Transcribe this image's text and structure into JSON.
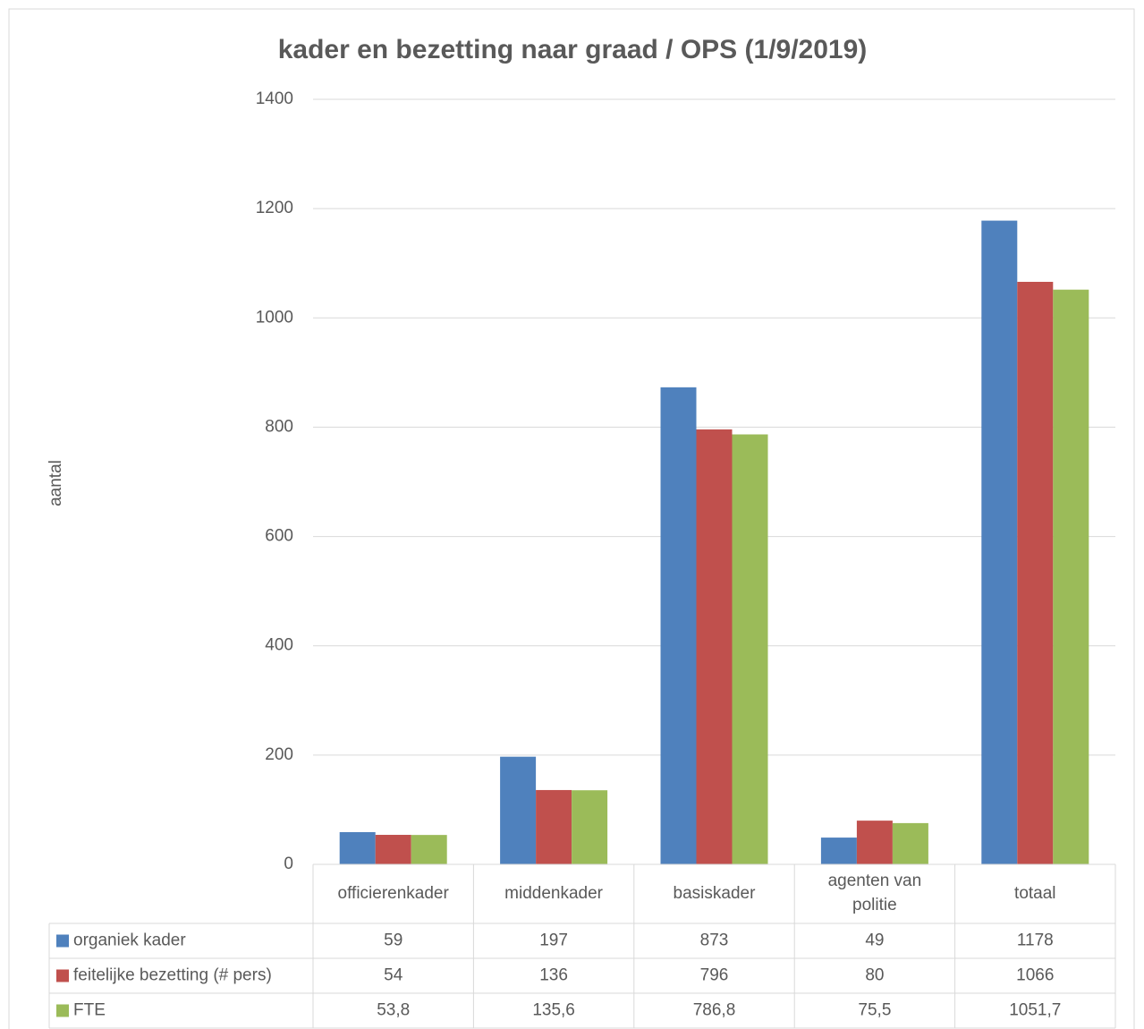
{
  "chart_data": {
    "type": "bar",
    "title": "kader en bezetting naar graad / OPS (1/9/2019)",
    "y_label": "aantal",
    "categories": [
      "officierenkader",
      "middenkader",
      "basiskader",
      "agenten van politie",
      "totaal"
    ],
    "series": [
      {
        "name": "organiek kader",
        "color": "#4f81bd",
        "values": [
          59,
          197,
          873,
          49,
          1178
        ]
      },
      {
        "name": "feitelijke bezetting (# pers)",
        "color": "#c0504d",
        "values": [
          54,
          136,
          796,
          80,
          1066
        ]
      },
      {
        "name": "FTE",
        "color": "#9bbb59",
        "values": [
          53.8,
          135.6,
          786.8,
          75.5,
          1051.7
        ],
        "value_labels": [
          "53,8",
          "135,6",
          "786,8",
          "75,5",
          "1051,7"
        ]
      }
    ],
    "ylim": [
      0,
      1400
    ],
    "yticks": [
      0,
      200,
      400,
      600,
      800,
      1000,
      1200,
      1400
    ],
    "grid": true
  }
}
